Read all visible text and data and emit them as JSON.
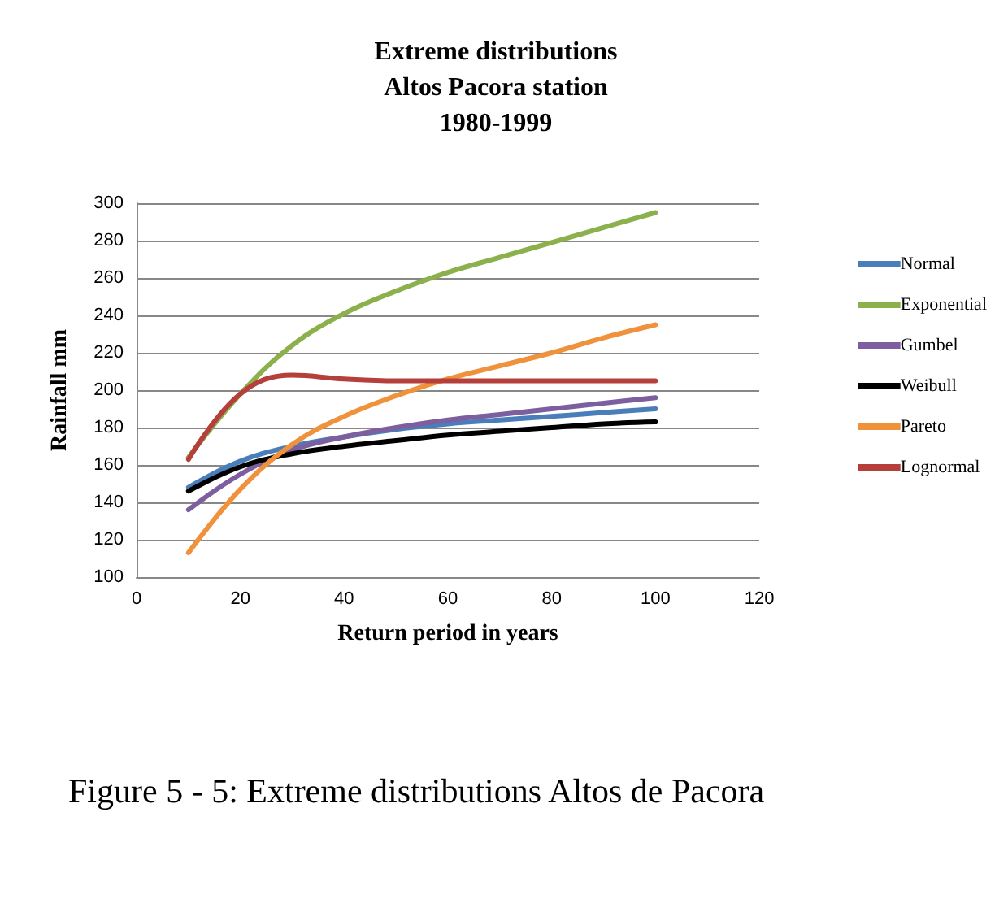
{
  "chart_data": {
    "type": "line",
    "title": "Extreme distributions\nAltos Pacora station\n1980-1999",
    "xlabel": "Return period in years",
    "ylabel": "Rainfall mm",
    "x": [
      10,
      20,
      30,
      40,
      50,
      60,
      70,
      80,
      90,
      100
    ],
    "series": [
      {
        "name": "Normal",
        "color": "#4a7ebb",
        "values": [
          148,
          162,
          170,
          175,
          179,
          182,
          184,
          186,
          188,
          190
        ]
      },
      {
        "name": "Exponential",
        "color": "#8cb04b",
        "values": [
          164,
          198,
          224,
          241,
          253,
          263,
          271,
          279,
          287,
          295
        ]
      },
      {
        "name": "Gumbel",
        "color": "#7d5fa0",
        "values": [
          136,
          155,
          168,
          175,
          180,
          184,
          187,
          190,
          193,
          196
        ]
      },
      {
        "name": "Weibull",
        "color": "#000000",
        "values": [
          146,
          159,
          166,
          170,
          173,
          176,
          178,
          180,
          182,
          183
        ]
      },
      {
        "name": "Pareto",
        "color": "#f0913c",
        "values": [
          113,
          147,
          171,
          186,
          197,
          206,
          213,
          220,
          228,
          235
        ]
      },
      {
        "name": "Lognormal",
        "color": "#b5403b",
        "values": [
          163,
          198,
          208,
          206,
          205,
          205,
          205,
          205,
          205,
          205
        ]
      }
    ],
    "xlim": [
      0,
      120
    ],
    "xticks": [
      0,
      20,
      40,
      60,
      80,
      100,
      120
    ],
    "ylim": [
      100,
      300
    ],
    "yticks": [
      100,
      120,
      140,
      160,
      180,
      200,
      220,
      240,
      260,
      280,
      300
    ],
    "grid": "y",
    "legend": "right",
    "marker": "none",
    "line_style": "solid",
    "annotations": [
      "Figure 5 - 5: Extreme distributions Altos de Pacora"
    ]
  }
}
